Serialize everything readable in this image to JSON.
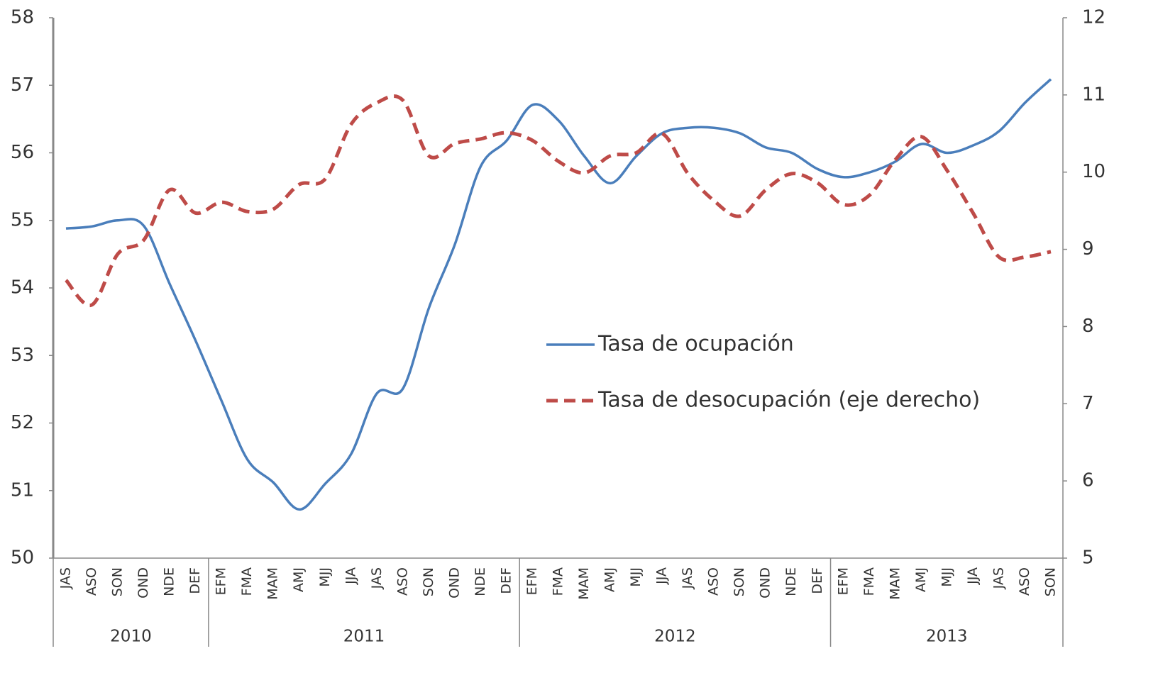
{
  "chart_data": {
    "type": "line",
    "groups": [
      {
        "name": "2010",
        "categories": [
          "JAS",
          "ASO",
          "SON",
          "OND",
          "NDE",
          "DEF"
        ]
      },
      {
        "name": "2011",
        "categories": [
          "EFM",
          "FMA",
          "MAM",
          "AMJ",
          "MJJ",
          "JJA",
          "JAS",
          "ASO",
          "SON",
          "OND",
          "NDE",
          "DEF"
        ]
      },
      {
        "name": "2012",
        "categories": [
          "EFM",
          "FMA",
          "MAM",
          "AMJ",
          "MJJ",
          "JJA",
          "JAS",
          "ASO",
          "SON",
          "OND",
          "NDE",
          "DEF"
        ]
      },
      {
        "name": "2013",
        "categories": [
          "EFM",
          "FMA",
          "MAM",
          "AMJ",
          "MJJ",
          "JJA",
          "JAS",
          "ASO",
          "SON"
        ]
      }
    ],
    "series": [
      {
        "name": "Tasa de ocupación",
        "color": "#4a7ebb",
        "axis": "y",
        "values": [
          54.88,
          54.91,
          55.0,
          54.92,
          54.06,
          53.22,
          52.33,
          51.46,
          51.12,
          50.72,
          51.1,
          51.54,
          52.44,
          52.51,
          53.7,
          54.64,
          55.8,
          56.18,
          56.71,
          56.48,
          55.95,
          55.55,
          55.95,
          56.29,
          56.37,
          56.37,
          56.29,
          56.08,
          56.0,
          55.76,
          55.64,
          55.71,
          55.87,
          56.13,
          56.0,
          56.11,
          56.32,
          56.74,
          57.09
        ]
      },
      {
        "name": "Tasa de desocupación (eje derecho)",
        "color": "#be4b48",
        "axis": "y2",
        "dashed": true,
        "values": [
          8.6,
          8.28,
          8.94,
          9.12,
          9.77,
          9.47,
          9.61,
          9.49,
          9.52,
          9.84,
          9.91,
          10.62,
          10.9,
          10.93,
          10.21,
          10.37,
          10.43,
          10.51,
          10.41,
          10.14,
          9.99,
          10.21,
          10.25,
          10.5,
          9.98,
          9.63,
          9.43,
          9.77,
          9.98,
          9.86,
          9.58,
          9.7,
          10.16,
          10.46,
          10.02,
          9.47,
          8.9,
          8.9,
          8.97
        ]
      }
    ],
    "ylim": [
      50,
      58
    ],
    "yticks": [
      50,
      51,
      52,
      53,
      54,
      55,
      56,
      57,
      58
    ],
    "y2lim": [
      5,
      12
    ],
    "y2ticks": [
      5,
      6,
      7,
      8,
      9,
      10,
      11,
      12
    ],
    "grid": false
  }
}
